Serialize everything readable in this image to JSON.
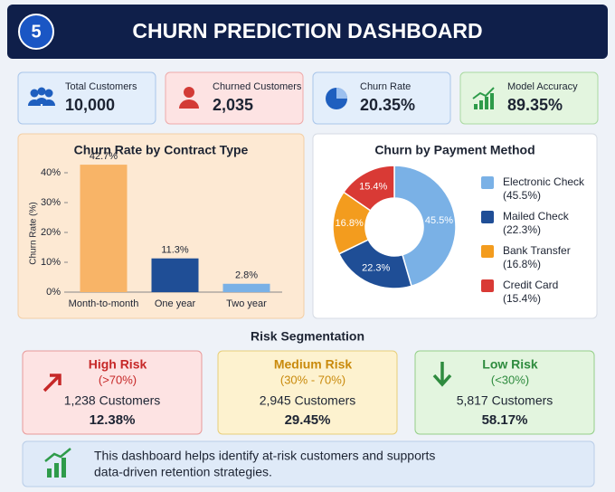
{
  "header": {
    "badge": "5",
    "title": "CHURN PREDICTION DASHBOARD"
  },
  "kpis": [
    {
      "label": "Total Customers",
      "value": "10,000"
    },
    {
      "label": "Churned Customers",
      "value": "2,035"
    },
    {
      "label": "Churn Rate",
      "value": "20.35%"
    },
    {
      "label": "Model Accuracy",
      "value": "89.35%"
    }
  ],
  "chart_data": [
    {
      "type": "bar",
      "title": "Churn Rate by Contract Type",
      "ylabel": "Churn Rate (%)",
      "categories": [
        "Month-to-month",
        "One year",
        "Two year"
      ],
      "values": [
        42.7,
        11.3,
        2.8
      ],
      "value_labels": [
        "42.7%",
        "11.3%",
        "2.8%"
      ],
      "colors": [
        "#f8b467",
        "#1f4e96",
        "#7ab1e6"
      ],
      "ylim": [
        0,
        45
      ],
      "yticks": [
        {
          "value": 0,
          "label": "0%"
        },
        {
          "value": 10,
          "label": "10%"
        },
        {
          "value": 20,
          "label": "20%"
        },
        {
          "value": 30,
          "label": "30%"
        },
        {
          "value": 40,
          "label": "40%"
        }
      ]
    },
    {
      "type": "pie",
      "title": "Churn by Payment Method",
      "categories": [
        "Electronic Check",
        "Mailed Check",
        "Bank Transfer",
        "Credit Card"
      ],
      "values": [
        45.5,
        22.3,
        16.8,
        15.4
      ],
      "value_labels": [
        "45.5%",
        "22.3%",
        "16.8%",
        "15.4%"
      ],
      "legend_labels": [
        "(45.5%)",
        "(22.3%)",
        "(16.8%)",
        "(15.4%)"
      ],
      "colors": [
        "#7ab1e6",
        "#1f4e96",
        "#f39c1e",
        "#d93a35"
      ]
    }
  ],
  "risk": {
    "title": "Risk Segmentation",
    "segments": [
      {
        "name": "High Risk",
        "range": "(>70%)",
        "customers": "1,238 Customers",
        "share": "12.38%"
      },
      {
        "name": "Medium Risk",
        "range": "(30% - 70%)",
        "customers": "2,945 Customers",
        "share": "29.45%"
      },
      {
        "name": "Low Risk",
        "range": "(<30%)",
        "customers": "5,817 Customers",
        "share": "58.17%"
      }
    ]
  },
  "footer": {
    "lines": [
      "This dashboard helps identify at-risk customers and supports",
      "data-driven retention strategies."
    ]
  }
}
